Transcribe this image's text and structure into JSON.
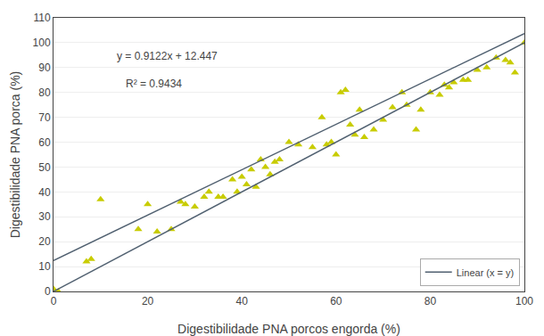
{
  "chart_data": {
    "type": "scatter",
    "xlabel": "Digestibilidade PNA porcos engorda (%)",
    "ylabel": "Digestibilidade PNA porca (%)",
    "series": [
      {
        "type": "scatter",
        "marker": "triangle-up",
        "color": "#c8cc00",
        "x": [
          0,
          1,
          7,
          8,
          10,
          18,
          20,
          22,
          25,
          27,
          28,
          30,
          32,
          33,
          35,
          36,
          38,
          39,
          40,
          41,
          42,
          43,
          44,
          45,
          46,
          47,
          48,
          50,
          52,
          55,
          57,
          58,
          59,
          60,
          61,
          62,
          63,
          64,
          65,
          66,
          68,
          70,
          72,
          74,
          75,
          77,
          78,
          80,
          82,
          83,
          84,
          85,
          87,
          88,
          90,
          92,
          94,
          96,
          97,
          98,
          100
        ],
        "values": [
          1,
          0,
          12,
          13,
          37,
          25,
          35,
          24,
          25,
          36,
          35,
          34,
          38,
          40,
          38,
          38,
          45,
          40,
          46,
          43,
          49,
          42,
          53,
          50,
          47,
          52,
          53,
          60,
          59,
          58,
          70,
          59,
          60,
          55,
          80,
          81,
          67,
          63,
          73,
          62,
          65,
          69,
          74,
          80,
          75,
          65,
          73,
          80,
          79,
          83,
          82,
          84,
          85,
          85,
          89,
          90,
          94,
          93,
          92,
          88,
          100
        ]
      },
      {
        "type": "line",
        "line_style": "solid",
        "color": "#506070",
        "x": [
          0,
          100
        ],
        "values": [
          12.447,
          103.667
        ]
      },
      {
        "type": "line",
        "line_style": "solid",
        "color": "#506070",
        "name": "Linear (x = y)",
        "x": [
          0,
          100
        ],
        "values": [
          0,
          100
        ]
      }
    ],
    "annotations": [
      "y = 0.9122x + 12.447",
      "R² = 0.9434"
    ],
    "xlim": [
      0,
      100
    ],
    "ylim": [
      0,
      110
    ],
    "xticks": [
      0,
      20,
      40,
      60,
      80,
      100
    ],
    "yticks": [
      0,
      10,
      20,
      30,
      40,
      50,
      60,
      70,
      80,
      90,
      100,
      110
    ],
    "grid": "y",
    "legend": "lower right"
  }
}
